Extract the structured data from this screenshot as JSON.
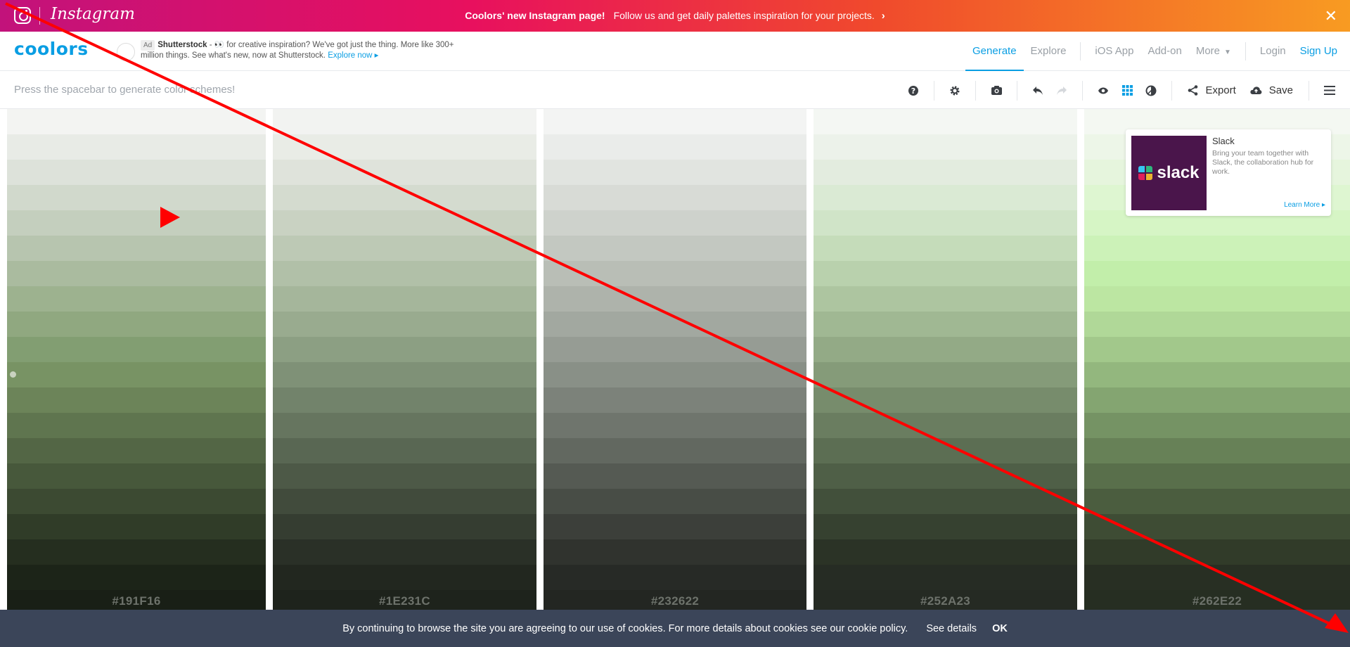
{
  "promo": {
    "brand_word": "Instagram",
    "headline": "Coolors' new Instagram page!",
    "message": "Follow us and get daily palettes inspiration for your projects.",
    "arrow": "›",
    "close": "✕"
  },
  "header": {
    "logo": "coolors",
    "ad": {
      "tag": "Ad",
      "brand": "Shutterstock",
      "text": "- 👀 for creative inspiration? We've got just the thing. More like 300+ million things. See what's new, now at Shutterstock.",
      "link": "Explore now ▸"
    },
    "nav": {
      "generate": "Generate",
      "explore": "Explore",
      "ios": "iOS App",
      "addon": "Add-on",
      "more": "More",
      "login": "Login",
      "signup": "Sign Up"
    }
  },
  "toolbar": {
    "hint": "Press the spacebar to generate color schemes!",
    "export": "Export",
    "save": "Save",
    "icons": [
      "help-icon",
      "gear-icon",
      "camera-icon",
      "undo-icon",
      "redo-icon",
      "eye-icon",
      "grid-icon",
      "contrast-icon",
      "share-icon",
      "cloud-icon",
      "menu-icon"
    ]
  },
  "palette": {
    "columns": [
      {
        "hex": "#191F16",
        "shades": [
          "#f3f4f2",
          "#e8ebe6",
          "#dde2da",
          "#d1d9cc",
          "#c4cfbe",
          "#b7c5af",
          "#aabb9f",
          "#9db28f",
          "#90a880",
          "#829e72",
          "#789364",
          "#6c8459",
          "#5f754f",
          "#536645",
          "#47583b",
          "#3c4a32",
          "#303c28",
          "#252e1f",
          "#1c2418",
          "#191f16"
        ]
      },
      {
        "hex": "#1E231C",
        "shades": [
          "#f2f3f1",
          "#e9ece6",
          "#dfe3db",
          "#d4dbcf",
          "#c9d2c2",
          "#bdc9b5",
          "#b1c0a8",
          "#a5b69b",
          "#99ab8f",
          "#8c9f83",
          "#7f9177",
          "#72836b",
          "#66755f",
          "#596753",
          "#4d5947",
          "#414b3c",
          "#353d31",
          "#2a3027",
          "#22271f",
          "#1e231c"
        ]
      },
      {
        "hex": "#232622",
        "shades": [
          "#f3f4f3",
          "#eaecea",
          "#e1e4e0",
          "#d8dbd6",
          "#ced2cc",
          "#c3c8c1",
          "#b9beb6",
          "#aeb3ab",
          "#a2a8a0",
          "#969c94",
          "#899087",
          "#7c827a",
          "#6f756d",
          "#626860",
          "#555a53",
          "#484d46",
          "#3c3f3a",
          "#30332e",
          "#272a26",
          "#232622"
        ]
      },
      {
        "hex": "#252A23",
        "shades": [
          "#f4f7f3",
          "#ecf2ea",
          "#e3ecdf",
          "#daead4",
          "#d0e4c8",
          "#c5dcba",
          "#b9d1ad",
          "#adc5a0",
          "#a0b893",
          "#93aa86",
          "#859b79",
          "#778c6c",
          "#6a7d60",
          "#5c6e53",
          "#4f5f47",
          "#42503b",
          "#364130",
          "#2b3326",
          "#262c24",
          "#252a23"
        ]
      },
      {
        "hex": "#262E22",
        "shades": [
          "#f4f8f2",
          "#edf6e8",
          "#e6f5dd",
          "#def6d1",
          "#d6f5c5",
          "#ccf2b8",
          "#c2eeaa",
          "#bce6a2",
          "#b0d898",
          "#a2c88b",
          "#93b77e",
          "#84a571",
          "#759364",
          "#678157",
          "#596f4b",
          "#4b5d3f",
          "#3e4c34",
          "#313b29",
          "#282f23",
          "#262e22"
        ]
      }
    ]
  },
  "slack_ad": {
    "logo_word": "slack",
    "title": "Slack",
    "body": "Bring your team together with Slack, the collaboration hub for work.",
    "cta": "Learn More ▸"
  },
  "cookie": {
    "message": "By continuing to browse the site you are agreeing to our use of cookies. For more details about cookies see our cookie policy.",
    "details": "See details",
    "ok": "OK"
  },
  "annotations": {
    "arrow_color": "#ff0000"
  }
}
